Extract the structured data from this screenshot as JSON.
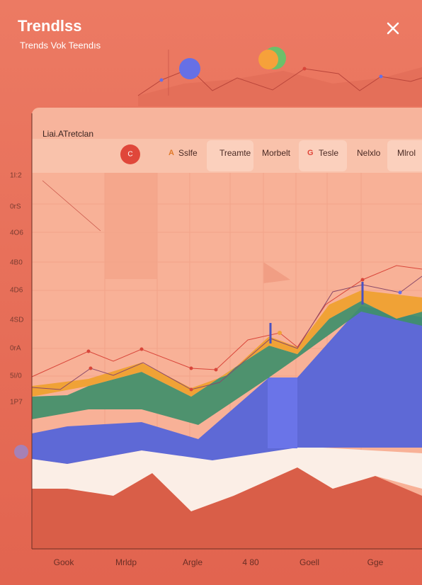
{
  "header": {
    "title": "Trendlss",
    "subtitle": "Trends Vok Teendıs"
  },
  "panel": {
    "title": "Liai.ATretclan",
    "badge": "C",
    "tabs": [
      {
        "icon": "A",
        "label": "Sslfe"
      },
      {
        "label": "Treamte"
      },
      {
        "label": "Morbelt"
      },
      {
        "icon": "G",
        "label": "Tesle"
      },
      {
        "label": "Nelxlo"
      },
      {
        "label": "Mlrol"
      }
    ]
  },
  "y_labels": [
    "1I:2",
    "0rS",
    "4O6",
    "4B0",
    "4D6",
    "4SD",
    "0rA",
    "5I/0",
    "1P7"
  ],
  "x_labels": [
    "Gook",
    "Mrldp",
    "Argle",
    "4 80",
    "Goell",
    "Gge"
  ]
}
